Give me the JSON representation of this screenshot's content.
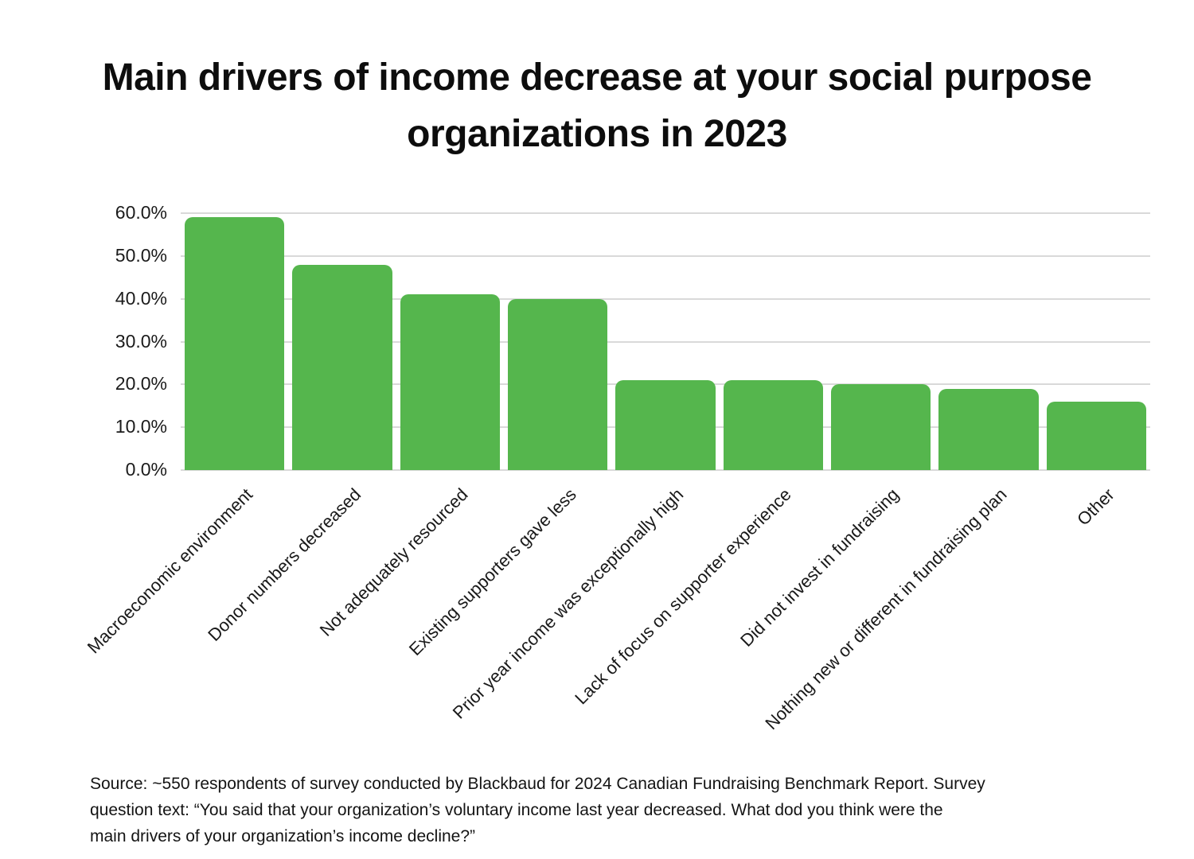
{
  "title": {
    "line1": "Main drivers of income decrease at your social purpose",
    "line2": "organizations in 2023"
  },
  "chart_data": {
    "type": "bar",
    "title": "Main drivers of income decrease at your social purpose organizations in 2023",
    "categories": [
      "Macroeconomic environment",
      "Donor numbers decreased",
      "Not adequately resourced",
      "Existing supporters gave less",
      "Prior year income was exceptionally high",
      "Lack of focus on supporter experience",
      "Did not invest in fundraising",
      "Nothing new or different in fundraising plan",
      "Other"
    ],
    "values": [
      59,
      48,
      41,
      40,
      21,
      21,
      20,
      19,
      16
    ],
    "value_unit": "percent",
    "xlabel": "",
    "ylabel": "",
    "ylim": [
      0,
      60
    ],
    "ytick_step": 10,
    "ytick_labels": [
      "0.0%",
      "10.0%",
      "20.0%",
      "30.0%",
      "40.0%",
      "50.0%",
      "60.0%"
    ],
    "grid": "horizontal",
    "legend": false,
    "bar_color": "#55b64d",
    "gridline_color": "#d9d9d9",
    "xtick_rotation_deg": 45
  },
  "source_note": {
    "lines": [
      "Source: ~550 respondents of survey conducted by Blackbaud for 2024 Canadian Fundraising Benchmark Report. Survey",
      "question text: “You said that your organization’s voluntary income last year decreased. What dod you think were the",
      "main drivers of your organization’s income decline?”"
    ]
  }
}
